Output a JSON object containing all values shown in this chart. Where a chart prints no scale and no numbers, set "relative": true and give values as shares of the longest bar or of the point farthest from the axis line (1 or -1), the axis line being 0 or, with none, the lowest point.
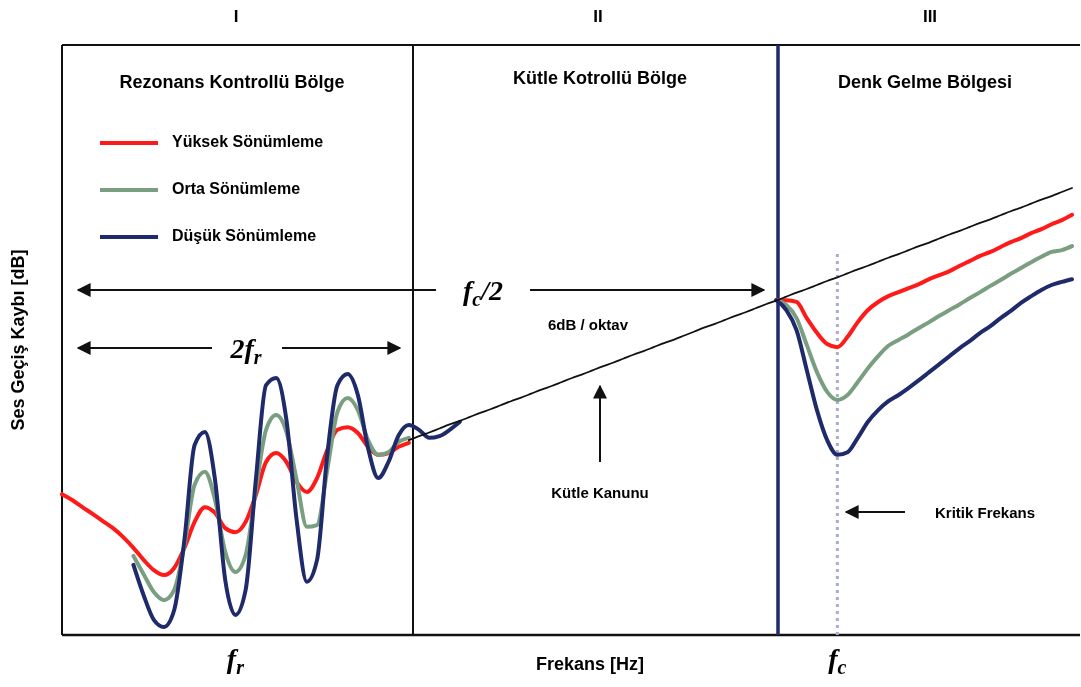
{
  "chart_data": {
    "type": "line",
    "relative": true,
    "ylabel": "Ses Geçiş Kaybı [dB]",
    "xlabel": "Frekans [Hz]",
    "legend": "top left",
    "categories": [
      null,
      null,
      null,
      null,
      null,
      null,
      null,
      null,
      null,
      null,
      null,
      null,
      null,
      null,
      null,
      null,
      null,
      "f$_{r}$",
      null,
      null,
      null,
      null,
      null,
      null,
      null,
      null,
      null,
      null,
      null,
      null,
      null,
      null,
      null,
      null,
      null,
      null,
      null,
      null,
      null,
      null,
      null,
      null,
      null,
      null,
      null,
      null,
      null,
      null,
      null,
      null,
      null,
      null,
      null,
      null,
      null,
      null,
      null,
      null,
      null,
      null,
      null,
      null,
      null,
      null,
      null,
      null,
      null,
      null,
      null,
      null,
      null,
      null,
      null,
      null,
      null,
      null,
      "f$_{c}$",
      null,
      null,
      null,
      null,
      null,
      null,
      null,
      null,
      null,
      null,
      null,
      null,
      null,
      null,
      null,
      null,
      null,
      null,
      null,
      null,
      null,
      null,
      null
    ],
    "series": [
      {
        "name": "Yüksek Sönümleme",
        "color": "#ff1a1a",
        "values": [
          0.315,
          0.302,
          0.286,
          0.271,
          0.255,
          0.239,
          0.219,
          0.195,
          0.168,
          0.145,
          0.134,
          0.15,
          0.195,
          0.253,
          0.286,
          0.273,
          0.239,
          0.23,
          0.253,
          0.313,
          0.387,
          0.407,
          0.387,
          0.342,
          0.32,
          0.351,
          0.414,
          0.459,
          0.465,
          0.452,
          0.421,
          0.403,
          0.407,
          0.421,
          0.43,
          null,
          null,
          null,
          null,
          null,
          null,
          null,
          null,
          null,
          null,
          null,
          null,
          null,
          null,
          null,
          null,
          null,
          null,
          null,
          null,
          null,
          null,
          null,
          null,
          null,
          null,
          null,
          null,
          null,
          null,
          null,
          null,
          null,
          null,
          null,
          0.749,
          0.749,
          0.745,
          0.709,
          0.676,
          0.651,
          0.644,
          0.667,
          0.7,
          0.727,
          0.745,
          0.758,
          0.767,
          0.776,
          0.785,
          0.796,
          0.805,
          0.814,
          0.826,
          0.837,
          0.848,
          0.857,
          0.868,
          0.879,
          0.888,
          0.899,
          0.908,
          0.919,
          0.928,
          0.94
        ]
      },
      {
        "name": "Orta Sönümleme",
        "color": "#7a9e80",
        "values": [
          null,
          null,
          null,
          null,
          null,
          null,
          null,
          0.177,
          0.136,
          0.096,
          0.078,
          0.101,
          0.201,
          0.336,
          0.365,
          0.302,
          0.186,
          0.141,
          0.179,
          0.324,
          0.459,
          0.492,
          0.454,
          0.347,
          0.242,
          0.246,
          0.369,
          0.499,
          0.53,
          0.503,
          0.436,
          0.403,
          0.409,
          0.432,
          0.441,
          null,
          null,
          null,
          null,
          null,
          null,
          null,
          null,
          null,
          null,
          null,
          null,
          null,
          null,
          null,
          null,
          null,
          null,
          null,
          null,
          null,
          null,
          null,
          null,
          null,
          null,
          null,
          null,
          null,
          null,
          null,
          null,
          null,
          null,
          null,
          0.749,
          0.738,
          0.709,
          0.649,
          0.588,
          0.544,
          0.526,
          0.537,
          0.566,
          0.597,
          0.624,
          0.647,
          0.66,
          0.673,
          0.687,
          0.7,
          0.714,
          0.727,
          0.74,
          0.754,
          0.767,
          0.781,
          0.794,
          0.808,
          0.821,
          0.834,
          0.846,
          0.857,
          0.861,
          0.87
        ]
      },
      {
        "name": "Düşük Sönümleme",
        "color": "#1f2a6b",
        "values": [
          null,
          null,
          null,
          null,
          null,
          null,
          null,
          0.157,
          0.089,
          0.034,
          0.018,
          0.056,
          0.213,
          0.425,
          0.454,
          0.347,
          0.123,
          0.045,
          0.101,
          0.347,
          0.559,
          0.575,
          0.481,
          0.257,
          0.119,
          0.168,
          0.403,
          0.559,
          0.584,
          0.537,
          0.418,
          0.351,
          0.387,
          0.447,
          0.47,
          0.459,
          0.441,
          0.445,
          0.459,
          0.477,
          null,
          null,
          null,
          null,
          null,
          null,
          null,
          null,
          null,
          null,
          null,
          null,
          null,
          null,
          null,
          null,
          null,
          null,
          null,
          null,
          null,
          null,
          null,
          null,
          null,
          null,
          null,
          null,
          null,
          null,
          0.749,
          0.727,
          0.682,
          0.593,
          0.503,
          0.436,
          0.403,
          0.409,
          0.441,
          0.477,
          0.503,
          0.523,
          0.537,
          0.553,
          0.57,
          0.588,
          0.606,
          0.624,
          0.642,
          0.658,
          0.676,
          0.691,
          0.709,
          0.725,
          0.743,
          0.758,
          0.772,
          0.783,
          0.79,
          0.796
        ]
      },
      {
        "color": "#111111",
        "values": [
          null,
          null,
          null,
          null,
          null,
          null,
          null,
          null,
          null,
          null,
          null,
          null,
          null,
          null,
          null,
          null,
          null,
          null,
          null,
          null,
          null,
          null,
          null,
          null,
          null,
          null,
          null,
          null,
          null,
          null,
          null,
          null,
          null,
          null,
          0.436,
          0.445,
          0.453,
          0.462,
          0.471,
          0.479,
          0.488,
          0.497,
          0.505,
          0.514,
          0.523,
          0.531,
          0.54,
          0.549,
          0.557,
          0.566,
          0.575,
          0.583,
          0.592,
          0.601,
          0.609,
          0.618,
          0.627,
          0.635,
          0.644,
          0.653,
          0.661,
          0.67,
          0.679,
          0.688,
          0.696,
          0.705,
          0.714,
          0.722,
          0.731,
          0.74,
          0.748,
          0.757,
          0.766,
          0.774,
          0.783,
          0.792,
          0.8,
          0.809,
          0.818,
          0.826,
          0.835,
          0.844,
          0.852,
          0.861,
          0.87,
          0.878,
          0.887,
          0.896,
          0.904,
          0.913,
          0.922,
          0.93,
          0.939,
          0.948,
          0.956,
          0.965,
          0.974,
          0.982,
          0.991,
          1.0
        ]
      }
    ],
    "ref_lines": [
      {
        "axis": "x",
        "value": "f$_{c}$",
        "color": "#a8acd0",
        "line_style": "dotted"
      }
    ],
    "annotations": [
      "I",
      "II",
      "III",
      "Rezonans Kontrollü Bölge",
      "Kütle Kotrollü Bölge",
      "Denk Gelme Bölgesi",
      "f$_{c}$/2",
      "2f$_{r}$",
      "6dB / oktav",
      "Kütle Kanunu",
      "Kritik Frekans"
    ]
  }
}
